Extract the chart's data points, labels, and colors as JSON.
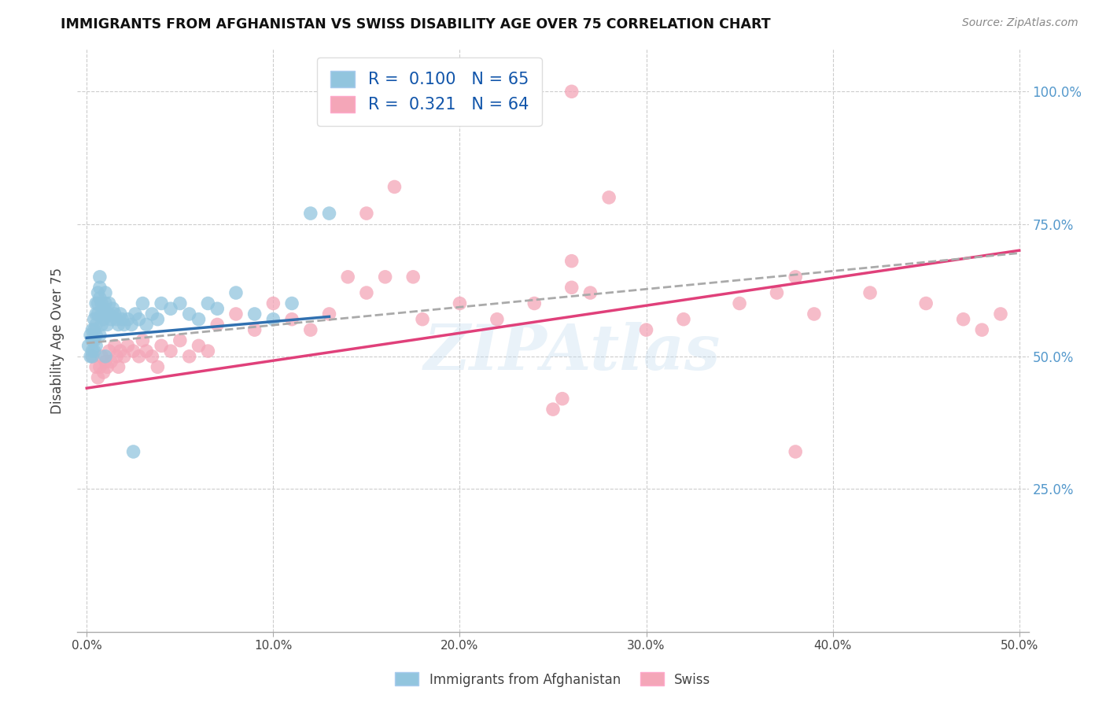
{
  "title": "IMMIGRANTS FROM AFGHANISTAN VS SWISS DISABILITY AGE OVER 75 CORRELATION CHART",
  "source": "Source: ZipAtlas.com",
  "ylabel": "Disability Age Over 75",
  "legend1_R": "0.100",
  "legend1_N": "65",
  "legend2_R": "0.321",
  "legend2_N": "64",
  "legend_label1": "Immigrants from Afghanistan",
  "legend_label2": "Swiss",
  "blue_color": "#92c5de",
  "pink_color": "#f4a6b8",
  "blue_line_color": "#3070b0",
  "pink_line_color": "#e0407a",
  "dashed_line_color": "#aaaaaa",
  "watermark": "ZIPAtlas",
  "xlim": [
    0.0,
    0.5
  ],
  "ylim": [
    0.0,
    1.05
  ],
  "blue_line_x0": 0.0,
  "blue_line_y0": 0.535,
  "blue_line_x1": 0.13,
  "blue_line_y1": 0.575,
  "pink_line_x0": 0.0,
  "pink_line_y0": 0.44,
  "pink_line_x1": 0.5,
  "pink_line_y1": 0.7,
  "dash_line_x0": 0.0,
  "dash_line_y0": 0.525,
  "dash_line_x1": 0.5,
  "dash_line_y1": 0.695,
  "blue_x": [
    0.001,
    0.002,
    0.002,
    0.003,
    0.003,
    0.003,
    0.004,
    0.004,
    0.004,
    0.004,
    0.005,
    0.005,
    0.005,
    0.005,
    0.006,
    0.006,
    0.006,
    0.007,
    0.007,
    0.007,
    0.008,
    0.008,
    0.008,
    0.009,
    0.009,
    0.01,
    0.01,
    0.011,
    0.011,
    0.012,
    0.012,
    0.013,
    0.014,
    0.015,
    0.016,
    0.017,
    0.018,
    0.019,
    0.02,
    0.022,
    0.024,
    0.026,
    0.028,
    0.03,
    0.032,
    0.035,
    0.038,
    0.04,
    0.045,
    0.05,
    0.055,
    0.06,
    0.065,
    0.07,
    0.08,
    0.09,
    0.1,
    0.11,
    0.12,
    0.13,
    0.003,
    0.005,
    0.007,
    0.01,
    0.025
  ],
  "blue_y": [
    0.52,
    0.54,
    0.5,
    0.55,
    0.53,
    0.51,
    0.57,
    0.55,
    0.53,
    0.51,
    0.6,
    0.58,
    0.56,
    0.54,
    0.62,
    0.6,
    0.58,
    0.65,
    0.63,
    0.61,
    0.6,
    0.58,
    0.56,
    0.59,
    0.57,
    0.62,
    0.6,
    0.58,
    0.56,
    0.6,
    0.58,
    0.57,
    0.59,
    0.58,
    0.57,
    0.56,
    0.58,
    0.57,
    0.56,
    0.57,
    0.56,
    0.58,
    0.57,
    0.6,
    0.56,
    0.58,
    0.57,
    0.6,
    0.59,
    0.6,
    0.58,
    0.57,
    0.6,
    0.59,
    0.62,
    0.58,
    0.57,
    0.6,
    0.77,
    0.77,
    0.5,
    0.52,
    0.54,
    0.5,
    0.32
  ],
  "pink_x": [
    0.003,
    0.005,
    0.006,
    0.007,
    0.008,
    0.009,
    0.01,
    0.011,
    0.012,
    0.013,
    0.015,
    0.016,
    0.017,
    0.018,
    0.02,
    0.022,
    0.025,
    0.028,
    0.03,
    0.032,
    0.035,
    0.038,
    0.04,
    0.045,
    0.05,
    0.055,
    0.06,
    0.065,
    0.07,
    0.08,
    0.09,
    0.1,
    0.11,
    0.12,
    0.13,
    0.14,
    0.15,
    0.16,
    0.18,
    0.2,
    0.22,
    0.24,
    0.26,
    0.27,
    0.28,
    0.3,
    0.32,
    0.35,
    0.37,
    0.39,
    0.42,
    0.45,
    0.47,
    0.49,
    0.15,
    0.165,
    0.175,
    0.25,
    0.255,
    0.38,
    0.38,
    0.26,
    0.48,
    0.26
  ],
  "pink_y": [
    0.5,
    0.48,
    0.46,
    0.48,
    0.5,
    0.47,
    0.49,
    0.48,
    0.51,
    0.49,
    0.52,
    0.5,
    0.48,
    0.51,
    0.5,
    0.52,
    0.51,
    0.5,
    0.53,
    0.51,
    0.5,
    0.48,
    0.52,
    0.51,
    0.53,
    0.5,
    0.52,
    0.51,
    0.56,
    0.58,
    0.55,
    0.6,
    0.57,
    0.55,
    0.58,
    0.65,
    0.62,
    0.65,
    0.57,
    0.6,
    0.57,
    0.6,
    0.63,
    0.62,
    0.8,
    0.55,
    0.57,
    0.6,
    0.62,
    0.58,
    0.62,
    0.6,
    0.57,
    0.58,
    0.77,
    0.82,
    0.65,
    0.4,
    0.42,
    0.65,
    0.32,
    0.68,
    0.55,
    1.0
  ]
}
